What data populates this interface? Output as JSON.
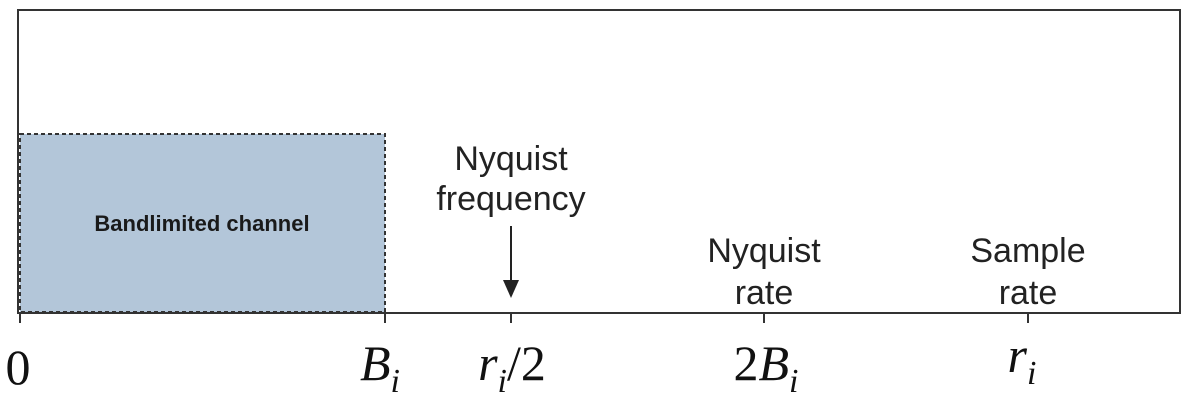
{
  "diagram": {
    "channel": {
      "label": "Bandlimited channel",
      "fill_color": "#b3c6d9"
    },
    "annotations": {
      "nyquist_frequency": [
        "Nyquist",
        "frequency"
      ],
      "nyquist_rate": [
        "Nyquist",
        "rate"
      ],
      "sample_rate": [
        "Sample",
        "rate"
      ]
    },
    "axis_ticks": {
      "zero": "0",
      "b_i": {
        "base": "B",
        "sub": "i"
      },
      "r_half": {
        "base": "r",
        "sub": "i",
        "suffix": "/2"
      },
      "two_b": {
        "prefix": "2",
        "base": "B",
        "sub": "i"
      },
      "r_i": {
        "base": "r",
        "sub": "i"
      }
    }
  }
}
